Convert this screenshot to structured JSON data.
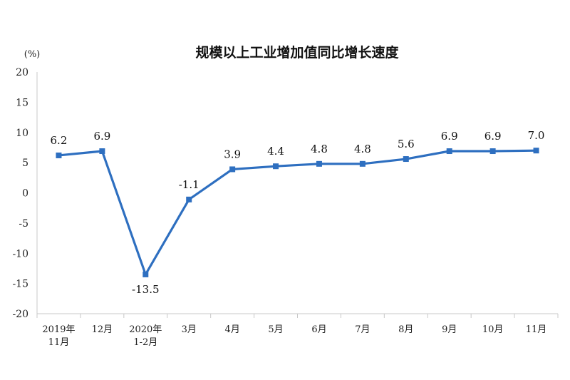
{
  "chart_data": {
    "type": "line",
    "title": "规模以上工业增加值同比增长速度",
    "unit_label": "(%)",
    "ylim": [
      -20,
      20
    ],
    "yticks": [
      20,
      15,
      10,
      5,
      0,
      -5,
      -10,
      -15,
      -20
    ],
    "grid": false,
    "categories": [
      [
        "2019年",
        "11月"
      ],
      [
        "12月"
      ],
      [
        "2020年",
        "1-2月"
      ],
      [
        "3月"
      ],
      [
        "4月"
      ],
      [
        "5月"
      ],
      [
        "6月"
      ],
      [
        "7月"
      ],
      [
        "8月"
      ],
      [
        "9月"
      ],
      [
        "10月"
      ],
      [
        "11月"
      ]
    ],
    "series": [
      {
        "values": [
          6.2,
          6.9,
          -13.5,
          -1.1,
          3.9,
          4.4,
          4.8,
          4.8,
          5.6,
          6.9,
          6.9,
          7.0
        ],
        "labels": [
          "6.2",
          "6.9",
          "-13.5",
          "-1.1",
          "3.9",
          "4.4",
          "4.8",
          "4.8",
          "5.6",
          "6.9",
          "6.9",
          "7.0"
        ],
        "color": "#2e6fc0"
      }
    ]
  }
}
